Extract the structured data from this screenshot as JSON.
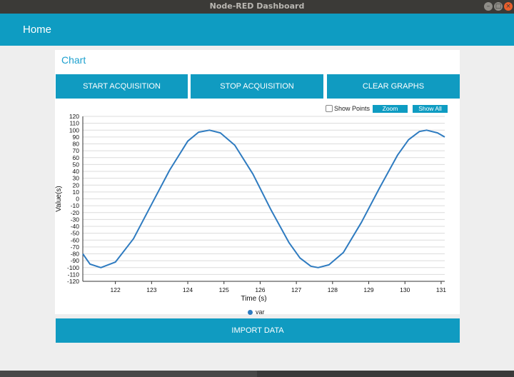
{
  "window": {
    "title": "Node-RED Dashboard"
  },
  "header": {
    "title": "Home"
  },
  "card": {
    "title": "Chart"
  },
  "buttons": {
    "start": "START ACQUISITION",
    "stop": "STOP ACQUISITION",
    "clear": "CLEAR GRAPHS",
    "import": "IMPORT DATA"
  },
  "chart_options": {
    "show_points_label": "Show Points",
    "show_points_checked": false,
    "zoom_label": "Zoom",
    "show_all_label": "Show All"
  },
  "colors": {
    "accent": "#0e9cc2",
    "series": "#2e7bc0",
    "title": "#1da1cf"
  },
  "chart_data": {
    "type": "line",
    "xlabel": "Time (s)",
    "ylabel": "Value(s)",
    "xlim": [
      121.1,
      131.1
    ],
    "ylim": [
      -120,
      120
    ],
    "x_ticks": [
      122,
      123,
      124,
      125,
      126,
      127,
      128,
      129,
      130,
      131
    ],
    "y_ticks": [
      120,
      110,
      100,
      90,
      80,
      70,
      60,
      50,
      40,
      30,
      20,
      10,
      0,
      -10,
      -20,
      -30,
      -40,
      -50,
      -60,
      -70,
      -80,
      -90,
      -100,
      -110,
      -120
    ],
    "grid": true,
    "legend": "bottom-center",
    "series": [
      {
        "name": "var",
        "x": [
          121.1,
          121.3,
          121.6,
          122.0,
          122.5,
          123.0,
          123.5,
          124.0,
          124.3,
          124.6,
          124.9,
          125.3,
          125.8,
          126.3,
          126.8,
          127.1,
          127.4,
          127.6,
          127.9,
          128.3,
          128.8,
          129.3,
          129.8,
          130.1,
          130.4,
          130.6,
          130.9,
          131.1
        ],
        "values": [
          -80,
          -95,
          -100,
          -92,
          -58,
          -8,
          42,
          84,
          97,
          100,
          96,
          78,
          36,
          -16,
          -64,
          -86,
          -98,
          -100,
          -96,
          -78,
          -34,
          16,
          64,
          86,
          98,
          100,
          96,
          90
        ]
      }
    ]
  }
}
